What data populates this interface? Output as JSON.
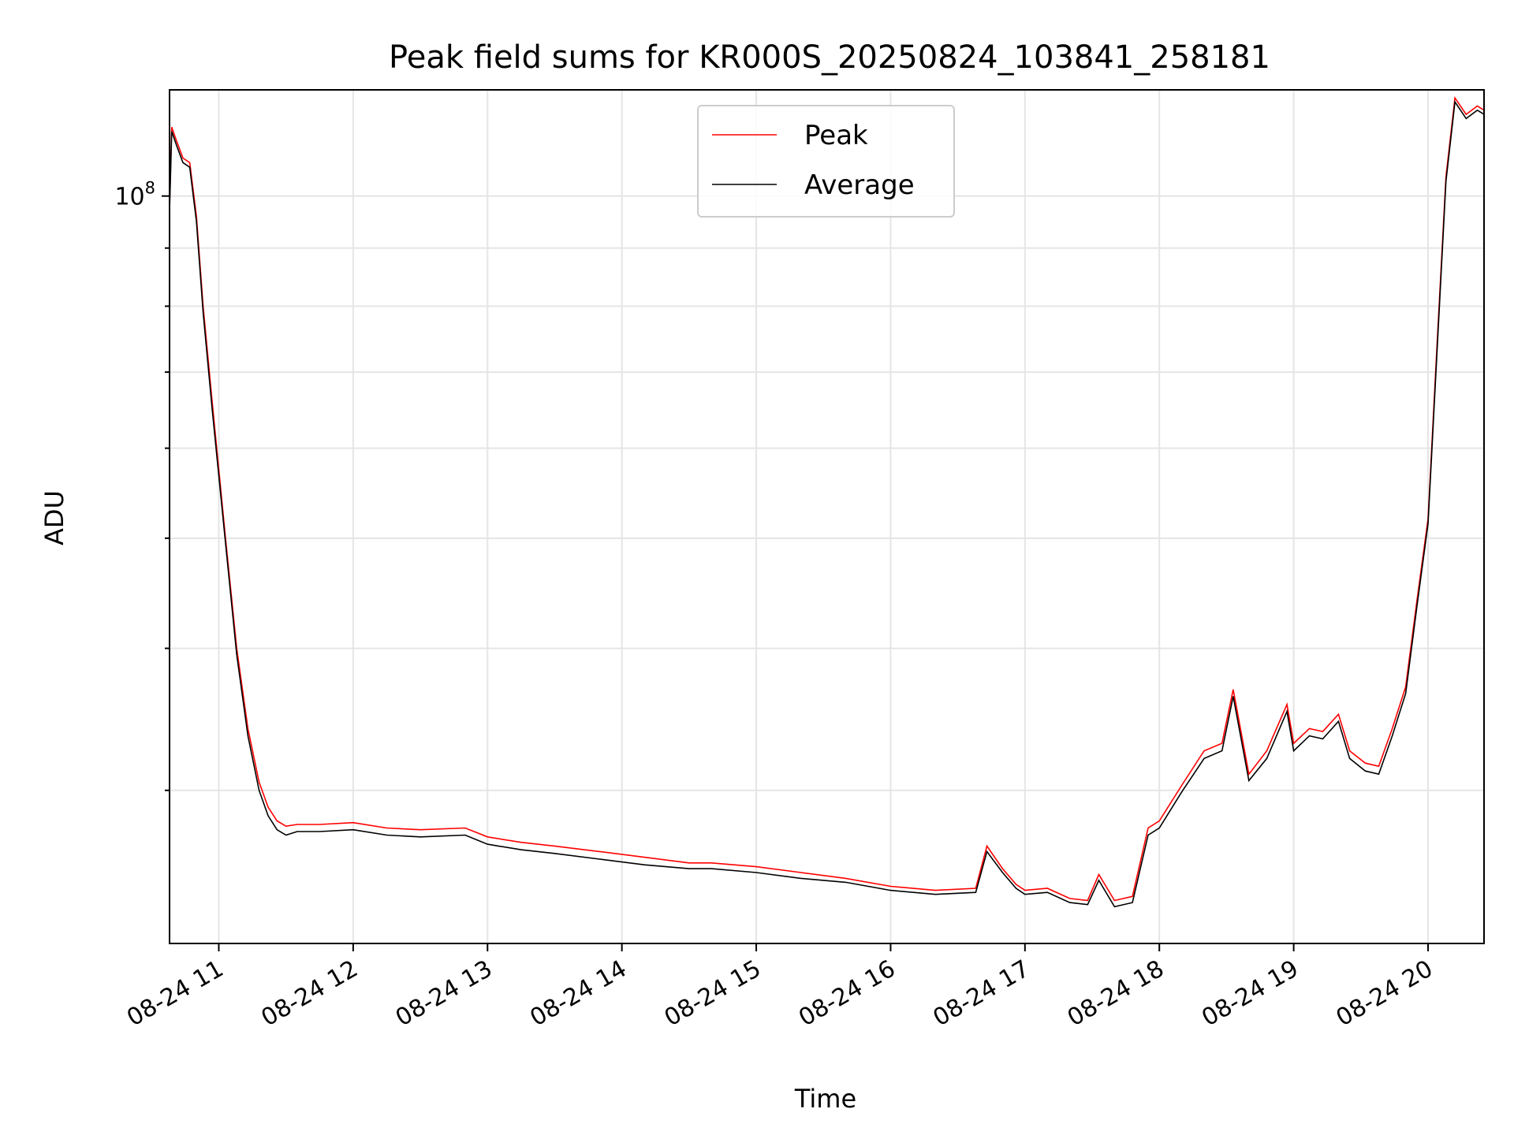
{
  "chart_data": {
    "type": "line",
    "title": "Peak field sums for KR000S_20250824_103841_258181",
    "xlabel": "Time",
    "ylabel": "ADU",
    "y_scale": "log",
    "y_tick_label": "10^8",
    "y_tick_label_base": "10",
    "y_tick_label_exp": "8",
    "x_tick_labels": [
      "08-24 11",
      "08-24 12",
      "08-24 13",
      "08-24 14",
      "08-24 15",
      "08-24 16",
      "08-24 17",
      "08-24 18",
      "08-24 19",
      "08-24 20"
    ],
    "x_tick_times": [
      "2025-08-24 11:00",
      "2025-08-24 12:00",
      "2025-08-24 13:00",
      "2025-08-24 14:00",
      "2025-08-24 15:00",
      "2025-08-24 16:00",
      "2025-08-24 17:00",
      "2025-08-24 18:00",
      "2025-08-24 19:00",
      "2025-08-24 20:00"
    ],
    "xlim": [
      "2025-08-24 10:38",
      "2025-08-24 20:25"
    ],
    "ylim": [
      22000000,
      124000000
    ],
    "grid": true,
    "legend_position": "top-center",
    "series": [
      {
        "name": "Peak",
        "color": "#ff0000",
        "x": [
          "2025-08-24 10:38",
          "2025-08-24 10:39",
          "2025-08-24 10:41",
          "2025-08-24 10:44",
          "2025-08-24 10:47",
          "2025-08-24 10:50",
          "2025-08-24 10:53",
          "2025-08-24 10:57",
          "2025-08-24 11:03",
          "2025-08-24 11:08",
          "2025-08-24 11:13",
          "2025-08-24 11:18",
          "2025-08-24 11:22",
          "2025-08-24 11:26",
          "2025-08-24 11:30",
          "2025-08-24 11:35",
          "2025-08-24 11:45",
          "2025-08-24 12:00",
          "2025-08-24 12:15",
          "2025-08-24 12:30",
          "2025-08-24 12:50",
          "2025-08-24 13:00",
          "2025-08-24 13:15",
          "2025-08-24 13:30",
          "2025-08-24 13:50",
          "2025-08-24 14:10",
          "2025-08-24 14:30",
          "2025-08-24 14:40",
          "2025-08-24 15:00",
          "2025-08-24 15:20",
          "2025-08-24 15:40",
          "2025-08-24 16:00",
          "2025-08-24 16:20",
          "2025-08-24 16:38",
          "2025-08-24 16:43",
          "2025-08-24 16:50",
          "2025-08-24 16:56",
          "2025-08-24 17:00",
          "2025-08-24 17:10",
          "2025-08-24 17:20",
          "2025-08-24 17:28",
          "2025-08-24 17:33",
          "2025-08-24 17:40",
          "2025-08-24 17:48",
          "2025-08-24 17:55",
          "2025-08-24 18:00",
          "2025-08-24 18:10",
          "2025-08-24 18:20",
          "2025-08-24 18:28",
          "2025-08-24 18:33",
          "2025-08-24 18:40",
          "2025-08-24 18:48",
          "2025-08-24 18:57",
          "2025-08-24 19:00",
          "2025-08-24 19:07",
          "2025-08-24 19:13",
          "2025-08-24 19:20",
          "2025-08-24 19:25",
          "2025-08-24 19:32",
          "2025-08-24 19:38",
          "2025-08-24 19:44",
          "2025-08-24 19:50",
          "2025-08-24 19:55",
          "2025-08-24 20:00",
          "2025-08-24 20:04",
          "2025-08-24 20:08",
          "2025-08-24 20:12",
          "2025-08-24 20:17",
          "2025-08-24 20:22",
          "2025-08-24 20:25"
        ],
        "values": [
          98000000,
          115000000,
          112000000,
          108000000,
          107000000,
          96000000,
          80000000,
          66000000,
          50000000,
          40000000,
          34000000,
          30500000,
          29000000,
          28200000,
          27900000,
          28000000,
          28000000,
          28100000,
          27800000,
          27700000,
          27800000,
          27300000,
          27000000,
          26800000,
          26500000,
          26200000,
          25900000,
          25900000,
          25700000,
          25400000,
          25100000,
          24700000,
          24500000,
          24600000,
          26800000,
          25600000,
          24800000,
          24500000,
          24600000,
          24100000,
          24000000,
          25300000,
          24000000,
          24200000,
          27800000,
          28200000,
          30300000,
          32500000,
          33000000,
          36800000,
          31000000,
          32500000,
          35700000,
          33000000,
          34000000,
          33800000,
          35000000,
          32500000,
          31700000,
          31500000,
          34000000,
          37000000,
          44000000,
          52000000,
          74000000,
          104000000,
          122000000,
          118000000,
          120000000,
          119000000
        ]
      },
      {
        "name": "Average",
        "color": "#000000",
        "x": [
          "2025-08-24 10:38",
          "2025-08-24 10:39",
          "2025-08-24 10:41",
          "2025-08-24 10:44",
          "2025-08-24 10:47",
          "2025-08-24 10:50",
          "2025-08-24 10:53",
          "2025-08-24 10:57",
          "2025-08-24 11:03",
          "2025-08-24 11:08",
          "2025-08-24 11:13",
          "2025-08-24 11:18",
          "2025-08-24 11:22",
          "2025-08-24 11:26",
          "2025-08-24 11:30",
          "2025-08-24 11:35",
          "2025-08-24 11:45",
          "2025-08-24 12:00",
          "2025-08-24 12:15",
          "2025-08-24 12:30",
          "2025-08-24 12:50",
          "2025-08-24 13:00",
          "2025-08-24 13:15",
          "2025-08-24 13:30",
          "2025-08-24 13:50",
          "2025-08-24 14:10",
          "2025-08-24 14:30",
          "2025-08-24 14:40",
          "2025-08-24 15:00",
          "2025-08-24 15:20",
          "2025-08-24 15:40",
          "2025-08-24 16:00",
          "2025-08-24 16:20",
          "2025-08-24 16:38",
          "2025-08-24 16:43",
          "2025-08-24 16:50",
          "2025-08-24 16:56",
          "2025-08-24 17:00",
          "2025-08-24 17:10",
          "2025-08-24 17:20",
          "2025-08-24 17:28",
          "2025-08-24 17:33",
          "2025-08-24 17:40",
          "2025-08-24 17:48",
          "2025-08-24 17:55",
          "2025-08-24 18:00",
          "2025-08-24 18:10",
          "2025-08-24 18:20",
          "2025-08-24 18:28",
          "2025-08-24 18:33",
          "2025-08-24 18:40",
          "2025-08-24 18:48",
          "2025-08-24 18:57",
          "2025-08-24 19:00",
          "2025-08-24 19:07",
          "2025-08-24 19:13",
          "2025-08-24 19:20",
          "2025-08-24 19:25",
          "2025-08-24 19:32",
          "2025-08-24 19:38",
          "2025-08-24 19:44",
          "2025-08-24 19:50",
          "2025-08-24 19:55",
          "2025-08-24 20:00",
          "2025-08-24 20:04",
          "2025-08-24 20:08",
          "2025-08-24 20:12",
          "2025-08-24 20:17",
          "2025-08-24 20:22",
          "2025-08-24 20:25"
        ],
        "values": [
          97000000,
          114000000,
          111000000,
          107000000,
          106000000,
          95000000,
          79000000,
          65000000,
          49500000,
          39500000,
          33500000,
          30000000,
          28500000,
          27700000,
          27400000,
          27600000,
          27600000,
          27700000,
          27400000,
          27300000,
          27400000,
          26900000,
          26600000,
          26400000,
          26100000,
          25800000,
          25600000,
          25600000,
          25400000,
          25100000,
          24900000,
          24500000,
          24300000,
          24400000,
          26500000,
          25400000,
          24600000,
          24300000,
          24400000,
          23900000,
          23800000,
          25000000,
          23700000,
          23900000,
          27400000,
          27800000,
          29900000,
          32000000,
          32500000,
          36300000,
          30600000,
          32000000,
          35200000,
          32500000,
          33500000,
          33300000,
          34500000,
          32000000,
          31200000,
          31000000,
          33500000,
          36500000,
          43500000,
          51500000,
          73000000,
          103000000,
          121000000,
          117000000,
          119000000,
          118000000
        ]
      }
    ]
  }
}
